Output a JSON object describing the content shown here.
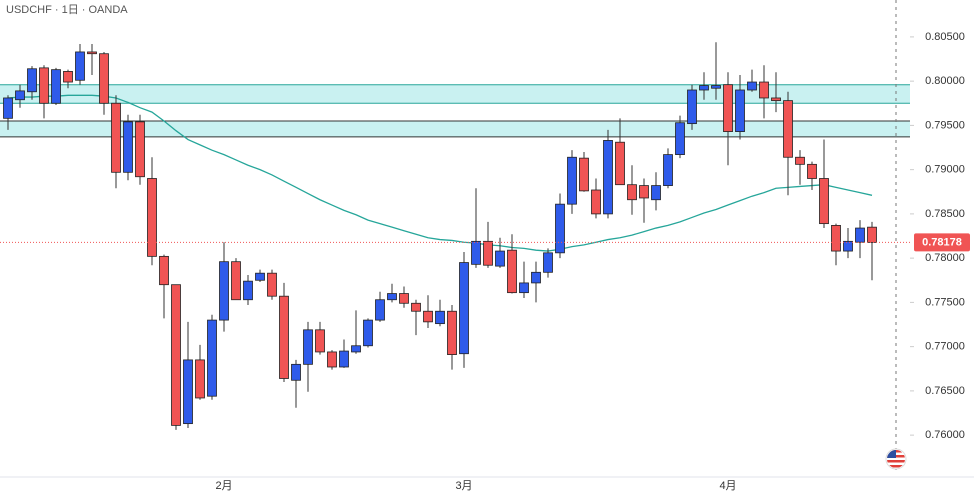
{
  "chart_data": {
    "type": "candlestick",
    "title": "USDCHF · 1日 · OANDA",
    "up_color": "#2f5bea",
    "down_color": "#f05454",
    "ma_color": "#26a69a",
    "zone_color": "#c9f1f1",
    "last_color": "#f05454",
    "ylim": [
      0.75606,
      0.80917
    ],
    "yticks": [
      {
        "value": 0.805,
        "label": "0.80500"
      },
      {
        "value": 0.8,
        "label": "0.80000"
      },
      {
        "value": 0.795,
        "label": "0.79500"
      },
      {
        "value": 0.79,
        "label": "0.79000"
      },
      {
        "value": 0.785,
        "label": "0.78500"
      },
      {
        "value": 0.78,
        "label": "0.78000"
      },
      {
        "value": 0.775,
        "label": "0.77500"
      },
      {
        "value": 0.77,
        "label": "0.77000"
      },
      {
        "value": 0.765,
        "label": "0.76500"
      },
      {
        "value": 0.76,
        "label": "0.76000"
      }
    ],
    "zones": [
      [
        0.7996,
        0.7975
      ],
      [
        0.7955,
        0.7937
      ]
    ],
    "categories": [
      null,
      null,
      null,
      null,
      null,
      null,
      null,
      null,
      null,
      null,
      null,
      null,
      null,
      null,
      null,
      null,
      null,
      null,
      "2月",
      null,
      null,
      null,
      null,
      null,
      null,
      null,
      null,
      null,
      null,
      null,
      null,
      null,
      null,
      null,
      null,
      null,
      null,
      null,
      "3月",
      null,
      null,
      null,
      null,
      null,
      null,
      null,
      null,
      null,
      null,
      null,
      null,
      null,
      null,
      null,
      null,
      null,
      null,
      null,
      null,
      null,
      "4月",
      null,
      null,
      null,
      null,
      null,
      null,
      null,
      null,
      null,
      null,
      null,
      null
    ],
    "candles": [
      [
        0.7958,
        0.7984,
        0.7945,
        0.7981
      ],
      [
        0.7979,
        0.7996,
        0.797,
        0.7989
      ],
      [
        0.7988,
        0.8017,
        0.7979,
        0.8014
      ],
      [
        0.8015,
        0.8018,
        0.7958,
        0.7975
      ],
      [
        0.7975,
        0.8015,
        0.7973,
        0.8013
      ],
      [
        0.8011,
        0.8013,
        0.7992,
        0.7999
      ],
      [
        0.8001,
        0.8042,
        0.7996,
        0.8033
      ],
      [
        0.8033,
        0.8042,
        0.8007,
        0.8031
      ],
      [
        0.8031,
        0.8033,
        0.7962,
        0.7975
      ],
      [
        0.7975,
        0.7984,
        0.7879,
        0.7897
      ],
      [
        0.7897,
        0.7962,
        0.7888,
        0.7954
      ],
      [
        0.7954,
        0.7962,
        0.7883,
        0.7892
      ],
      [
        0.789,
        0.7914,
        0.7792,
        0.7802
      ],
      [
        0.7802,
        0.7804,
        0.7732,
        0.777
      ],
      [
        0.777,
        0.777,
        0.7606,
        0.7611
      ],
      [
        0.7613,
        0.7728,
        0.7608,
        0.7685
      ],
      [
        0.7685,
        0.7702,
        0.764,
        0.7642
      ],
      [
        0.7644,
        0.7736,
        0.764,
        0.773
      ],
      [
        0.773,
        0.7818,
        0.7717,
        0.7796
      ],
      [
        0.7796,
        0.78,
        0.7753,
        0.7753
      ],
      [
        0.7753,
        0.7781,
        0.7747,
        0.7774
      ],
      [
        0.7775,
        0.7787,
        0.7773,
        0.7783
      ],
      [
        0.7783,
        0.7787,
        0.7753,
        0.7757
      ],
      [
        0.7757,
        0.7772,
        0.766,
        0.7664
      ],
      [
        0.7662,
        0.7685,
        0.7631,
        0.768
      ],
      [
        0.768,
        0.7728,
        0.7649,
        0.7719
      ],
      [
        0.7719,
        0.7728,
        0.7691,
        0.7694
      ],
      [
        0.7694,
        0.7696,
        0.7674,
        0.7677
      ],
      [
        0.7677,
        0.7708,
        0.7676,
        0.7695
      ],
      [
        0.7694,
        0.7741,
        0.7692,
        0.7701
      ],
      [
        0.7701,
        0.7732,
        0.7699,
        0.773
      ],
      [
        0.773,
        0.7762,
        0.7728,
        0.7753
      ],
      [
        0.7753,
        0.7771,
        0.775,
        0.776
      ],
      [
        0.776,
        0.7768,
        0.7744,
        0.7749
      ],
      [
        0.7749,
        0.7753,
        0.7713,
        0.774
      ],
      [
        0.774,
        0.7758,
        0.7721,
        0.7728
      ],
      [
        0.7726,
        0.7753,
        0.7723,
        0.774
      ],
      [
        0.774,
        0.7747,
        0.7674,
        0.7691
      ],
      [
        0.7692,
        0.7807,
        0.7676,
        0.7795
      ],
      [
        0.7793,
        0.7879,
        0.7789,
        0.7819
      ],
      [
        0.7819,
        0.7841,
        0.7789,
        0.7792
      ],
      [
        0.7791,
        0.7823,
        0.7789,
        0.7808
      ],
      [
        0.7809,
        0.7827,
        0.776,
        0.7761
      ],
      [
        0.7761,
        0.7796,
        0.7755,
        0.7772
      ],
      [
        0.7772,
        0.7796,
        0.775,
        0.7784
      ],
      [
        0.7784,
        0.7811,
        0.7778,
        0.7806
      ],
      [
        0.7806,
        0.7873,
        0.78,
        0.7861
      ],
      [
        0.7861,
        0.7922,
        0.785,
        0.7914
      ],
      [
        0.7913,
        0.792,
        0.7875,
        0.7876
      ],
      [
        0.7877,
        0.789,
        0.7845,
        0.785
      ],
      [
        0.785,
        0.7945,
        0.7845,
        0.7933
      ],
      [
        0.7931,
        0.7958,
        0.7883,
        0.7883
      ],
      [
        0.7883,
        0.7905,
        0.7849,
        0.7866
      ],
      [
        0.7882,
        0.789,
        0.784,
        0.7868
      ],
      [
        0.7866,
        0.7897,
        0.7854,
        0.7882
      ],
      [
        0.7882,
        0.7924,
        0.7879,
        0.7917
      ],
      [
        0.7917,
        0.7961,
        0.7913,
        0.7953
      ],
      [
        0.7952,
        0.7996,
        0.7945,
        0.799
      ],
      [
        0.799,
        0.801,
        0.7979,
        0.7995
      ],
      [
        0.7992,
        0.8044,
        0.7979,
        0.7995
      ],
      [
        0.7996,
        0.801,
        0.7905,
        0.7943
      ],
      [
        0.7943,
        0.8007,
        0.7934,
        0.799
      ],
      [
        0.799,
        0.8013,
        0.7988,
        0.7999
      ],
      [
        0.7999,
        0.8018,
        0.7958,
        0.7981
      ],
      [
        0.7981,
        0.801,
        0.7965,
        0.7978
      ],
      [
        0.7978,
        0.7988,
        0.7871,
        0.7914
      ],
      [
        0.7914,
        0.7922,
        0.7883,
        0.7906
      ],
      [
        0.7906,
        0.7909,
        0.7877,
        0.789
      ],
      [
        0.789,
        0.7934,
        0.7834,
        0.7839
      ],
      [
        0.7837,
        0.7839,
        0.7792,
        0.7808
      ],
      [
        0.7808,
        0.7834,
        0.78,
        0.7819
      ],
      [
        0.7818,
        0.7843,
        0.78,
        0.7834
      ],
      [
        0.7835,
        0.7841,
        0.7775,
        0.78178
      ]
    ],
    "ma": [
      0.7981,
      0.7982,
      0.7982,
      0.7983,
      0.7983,
      0.7984,
      0.7984,
      0.7984,
      0.7983,
      0.7981,
      0.7976,
      0.797,
      0.7965,
      0.7955,
      0.7944,
      0.7934,
      0.7928,
      0.7922,
      0.7917,
      0.7911,
      0.7905,
      0.79,
      0.7894,
      0.7887,
      0.788,
      0.7873,
      0.7866,
      0.786,
      0.7854,
      0.7849,
      0.7843,
      0.7839,
      0.7835,
      0.7831,
      0.7827,
      0.7823,
      0.7821,
      0.782,
      0.7818,
      0.7817,
      0.7815,
      0.7814,
      0.7812,
      0.7811,
      0.7809,
      0.7808,
      0.781,
      0.7813,
      0.7815,
      0.7818,
      0.7821,
      0.7823,
      0.7826,
      0.783,
      0.7834,
      0.7837,
      0.7841,
      0.7846,
      0.7851,
      0.7855,
      0.786,
      0.7865,
      0.787,
      0.7874,
      0.7879,
      0.788,
      0.7881,
      0.7882,
      0.7883,
      0.788,
      0.7877,
      0.7874,
      0.7871
    ]
  }
}
